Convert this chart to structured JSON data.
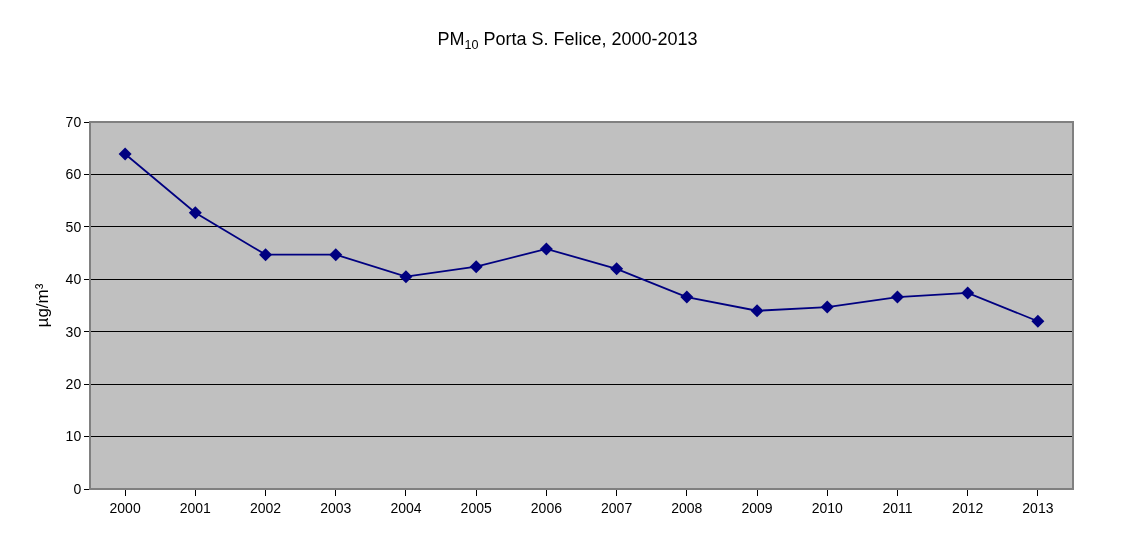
{
  "chart_data": {
    "type": "line",
    "title": "PM$_{10}$ Porta S. Felice, 2000-2013",
    "ylabel": "µg/m³",
    "categories": [
      "2000",
      "2001",
      "2002",
      "2003",
      "2004",
      "2005",
      "2006",
      "2007",
      "2008",
      "2009",
      "2010",
      "2011",
      "2012",
      "2013"
    ],
    "series": [
      {
        "color": "#000080",
        "values": [
          63.9,
          52.7,
          44.7,
          44.7,
          40.5,
          42.4,
          45.8,
          42.0,
          36.6,
          34.0,
          34.7,
          36.6,
          37.4,
          32.0
        ]
      }
    ],
    "ylim": [
      0,
      70
    ],
    "yticks": [
      0,
      10,
      20,
      30,
      40,
      50,
      60,
      70
    ],
    "grid": "y",
    "marker": "diamond",
    "line_style": "solid"
  }
}
